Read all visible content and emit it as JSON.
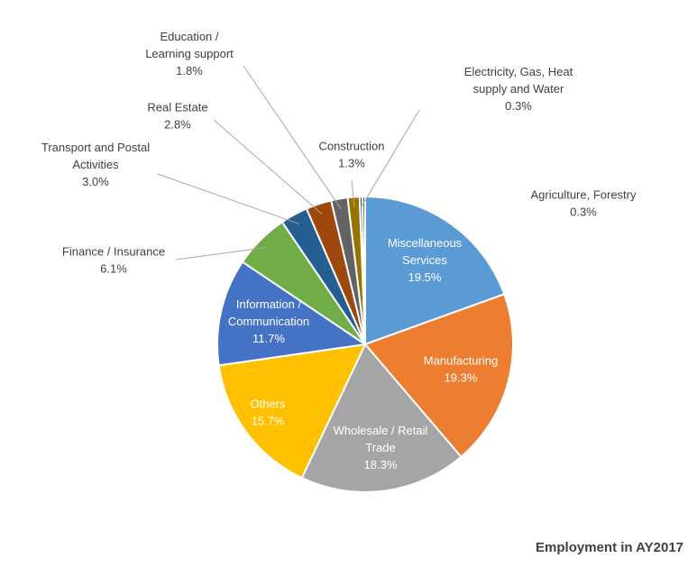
{
  "chart_data": {
    "type": "pie",
    "title": "Employment in AY2017",
    "slices": [
      {
        "label": "Miscellaneous Services",
        "lines": [
          "Miscellaneous",
          "Services"
        ],
        "pct_text": "19.5%",
        "value": 19.5,
        "color": "#5B9BD5",
        "inside": true
      },
      {
        "label": "Manufacturing",
        "lines": [
          "Manufacturing"
        ],
        "pct_text": "19.3%",
        "value": 19.3,
        "color": "#ED7D31",
        "inside": true
      },
      {
        "label": "Wholesale / Retail Trade",
        "lines": [
          "Wholesale / Retail",
          "Trade"
        ],
        "pct_text": "18.3%",
        "value": 18.3,
        "color": "#A5A5A5",
        "inside": true
      },
      {
        "label": "Others",
        "lines": [
          "Others"
        ],
        "pct_text": "15.7%",
        "value": 15.7,
        "color": "#FFC000",
        "inside": true
      },
      {
        "label": "Information / Communication",
        "lines": [
          "Information /",
          "Communication"
        ],
        "pct_text": "11.7%",
        "value": 11.7,
        "color": "#4472C4",
        "inside": true
      },
      {
        "label": "Finance / Insurance",
        "lines": [
          "Finance / Insurance"
        ],
        "pct_text": "6.1%",
        "value": 6.1,
        "color": "#70AD47",
        "inside": false
      },
      {
        "label": "Transport and Postal Activities",
        "lines": [
          "Transport and Postal",
          "Activities"
        ],
        "pct_text": "3.0%",
        "value": 3.0,
        "color": "#255E91",
        "inside": false
      },
      {
        "label": "Real Estate",
        "lines": [
          "Real Estate"
        ],
        "pct_text": "2.8%",
        "value": 2.8,
        "color": "#9E480E",
        "inside": false
      },
      {
        "label": "Education / Learning support",
        "lines": [
          "Education /",
          "Learning support"
        ],
        "pct_text": "1.8%",
        "value": 1.8,
        "color": "#636363",
        "inside": false
      },
      {
        "label": "Construction",
        "lines": [
          "Construction"
        ],
        "pct_text": "1.3%",
        "value": 1.3,
        "color": "#997300",
        "inside": false
      },
      {
        "label": "Electricity, Gas, Heat supply and Water",
        "lines": [
          "Electricity, Gas, Heat",
          "supply and Water"
        ],
        "pct_text": "0.3%",
        "value": 0.3,
        "color": "#264478",
        "inside": false
      },
      {
        "label": "Agriculture, Forestry",
        "lines": [
          "Agriculture, Forestry"
        ],
        "pct_text": "0.3%",
        "value": 0.3,
        "color": "#43682B",
        "inside": false
      }
    ]
  }
}
